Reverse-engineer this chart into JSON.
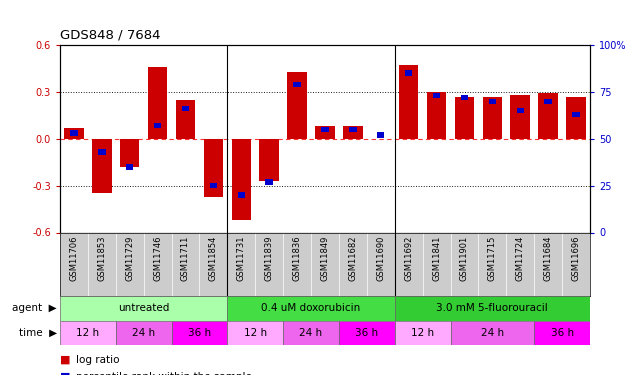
{
  "title": "GDS848 / 7684",
  "samples": [
    "GSM11706",
    "GSM11853",
    "GSM11729",
    "GSM11746",
    "GSM11711",
    "GSM11854",
    "GSM11731",
    "GSM11839",
    "GSM11836",
    "GSM11849",
    "GSM11682",
    "GSM11690",
    "GSM11692",
    "GSM11841",
    "GSM11901",
    "GSM11715",
    "GSM11724",
    "GSM11684",
    "GSM11696"
  ],
  "log_ratio": [
    0.07,
    -0.35,
    -0.18,
    0.46,
    0.25,
    -0.37,
    -0.52,
    -0.27,
    0.43,
    0.08,
    0.08,
    0.0,
    0.47,
    0.3,
    0.27,
    0.27,
    0.28,
    0.29,
    0.27
  ],
  "percentile": [
    53,
    43,
    35,
    57,
    66,
    25,
    20,
    27,
    79,
    55,
    55,
    52,
    85,
    73,
    72,
    70,
    65,
    70,
    63
  ],
  "agents": [
    {
      "label": "untreated",
      "start": 0,
      "end": 6,
      "color": "#aaffaa"
    },
    {
      "label": "0.4 uM doxorubicin",
      "start": 6,
      "end": 12,
      "color": "#44dd44"
    },
    {
      "label": "3.0 mM 5-fluorouracil",
      "start": 12,
      "end": 19,
      "color": "#33cc33"
    }
  ],
  "times": [
    {
      "label": "12 h",
      "start": 0,
      "end": 2,
      "color": "#ffaaff"
    },
    {
      "label": "24 h",
      "start": 2,
      "end": 4,
      "color": "#ee66ee"
    },
    {
      "label": "36 h",
      "start": 4,
      "end": 6,
      "color": "#ff00ff"
    },
    {
      "label": "12 h",
      "start": 6,
      "end": 8,
      "color": "#ffaaff"
    },
    {
      "label": "24 h",
      "start": 8,
      "end": 10,
      "color": "#ee66ee"
    },
    {
      "label": "36 h",
      "start": 10,
      "end": 12,
      "color": "#ff00ff"
    },
    {
      "label": "12 h",
      "start": 12,
      "end": 14,
      "color": "#ffaaff"
    },
    {
      "label": "24 h",
      "start": 14,
      "end": 17,
      "color": "#ee66ee"
    },
    {
      "label": "36 h",
      "start": 17,
      "end": 19,
      "color": "#ff00ff"
    }
  ],
  "red_color": "#cc0000",
  "blue_color": "#0000cc",
  "ylim_left": [
    -0.6,
    0.6
  ],
  "ylim_right": [
    0,
    100
  ],
  "yticks_left": [
    -0.6,
    -0.3,
    0.0,
    0.3,
    0.6
  ],
  "yticks_right": [
    0,
    25,
    50,
    75,
    100
  ],
  "ytick_labels_right": [
    "0",
    "25",
    "50",
    "75",
    "100%"
  ],
  "dotted_hlines": [
    -0.3,
    0.3
  ],
  "zero_hline": 0.0,
  "bar_width": 0.7,
  "group_seps": [
    5.5,
    11.5
  ],
  "n_samples": 19
}
